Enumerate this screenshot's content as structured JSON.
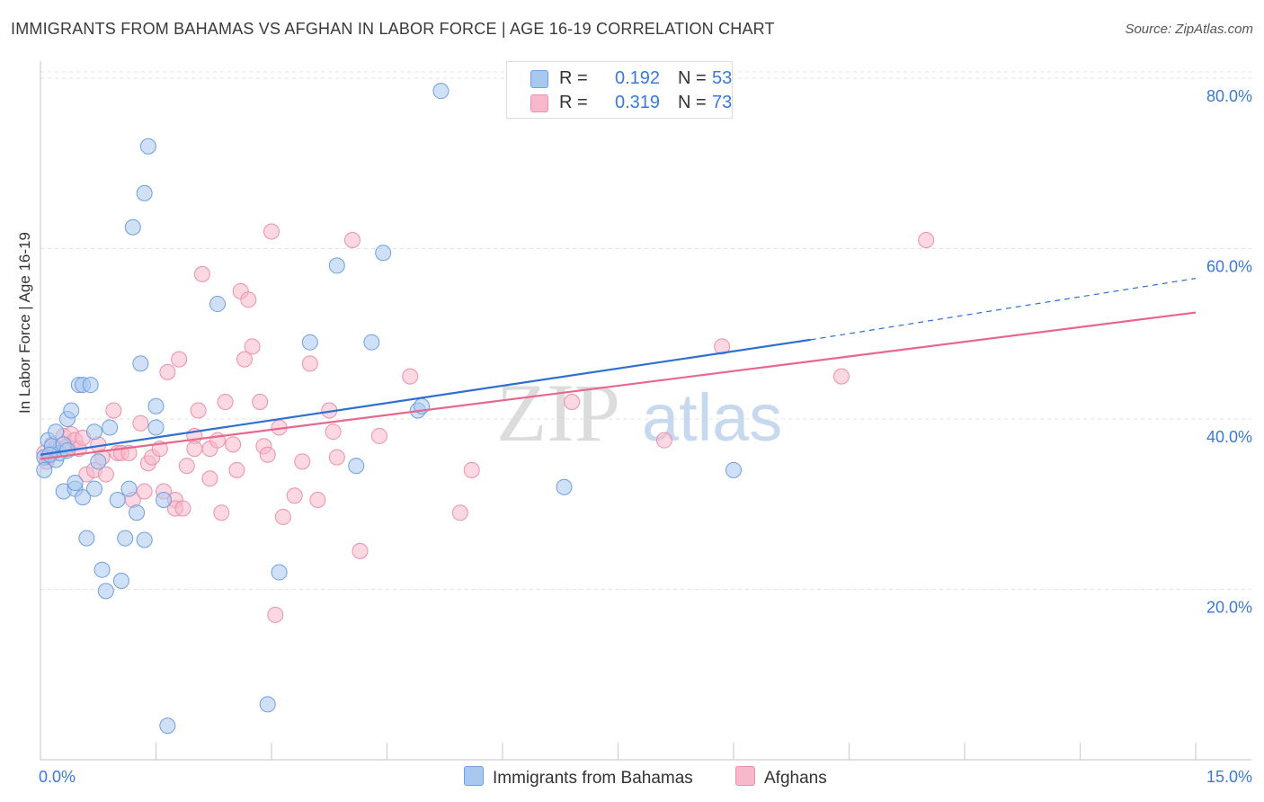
{
  "header": {
    "title": "IMMIGRANTS FROM BAHAMAS VS AFGHAN IN LABOR FORCE | AGE 16-19 CORRELATION CHART",
    "source": "Source: ZipAtlas.com"
  },
  "watermark": {
    "zip": "ZIP",
    "atlas": "atlas"
  },
  "legend": {
    "r_label": "R =",
    "n_label": "N =",
    "entries": [
      {
        "name": "Immigrants from Bahamas",
        "r": "0.192",
        "n": "53",
        "color": "#a9c8f0",
        "stroke": "#6e9fe0"
      },
      {
        "name": "Afghans",
        "r": "0.319",
        "n": "73",
        "color": "#f7b8cb",
        "stroke": "#ee8fab"
      }
    ]
  },
  "chart_data": {
    "type": "scatter",
    "title": "IMMIGRANTS FROM BAHAMAS VS AFGHAN IN LABOR FORCE | AGE 16-19 CORRELATION CHART",
    "xlabel": "",
    "ylabel": "In Labor Force | Age 16-19",
    "xlim": [
      0,
      15
    ],
    "ylim": [
      0,
      82
    ],
    "x_tick_labels": [
      "0.0%",
      "15.0%"
    ],
    "y_ticks": [
      20,
      40,
      60,
      80
    ],
    "y_tick_labels": [
      "20.0%",
      "40.0%",
      "60.0%",
      "80.0%"
    ],
    "grid": true,
    "legend_position": "top-center",
    "colors": {
      "blue": "#6e9fe0",
      "blue_fill": "#a9c8f0",
      "blue_line": "#2f6fd0",
      "pink": "#ee8fab",
      "pink_fill": "#f7b8cb",
      "pink_line": "#e8678e"
    },
    "series": [
      {
        "name": "Immigrants from Bahamas",
        "points": [
          [
            0.05,
            35.5
          ],
          [
            0.1,
            37.5
          ],
          [
            0.15,
            36.8
          ],
          [
            0.2,
            38.5
          ],
          [
            0.2,
            35.2
          ],
          [
            0.25,
            36.0
          ],
          [
            0.3,
            31.5
          ],
          [
            0.3,
            37.0
          ],
          [
            0.35,
            36.3
          ],
          [
            0.35,
            40.0
          ],
          [
            0.4,
            41.0
          ],
          [
            0.45,
            31.8
          ],
          [
            0.45,
            32.5
          ],
          [
            0.5,
            44.0
          ],
          [
            0.55,
            44.0
          ],
          [
            0.55,
            30.8
          ],
          [
            0.6,
            26.0
          ],
          [
            0.65,
            44.0
          ],
          [
            0.7,
            31.8
          ],
          [
            0.7,
            38.5
          ],
          [
            0.75,
            35.0
          ],
          [
            0.8,
            22.3
          ],
          [
            0.85,
            19.8
          ],
          [
            0.9,
            39.0
          ],
          [
            1.0,
            30.5
          ],
          [
            1.05,
            21.0
          ],
          [
            1.1,
            26.0
          ],
          [
            1.15,
            31.8
          ],
          [
            1.2,
            62.5
          ],
          [
            1.25,
            29.0
          ],
          [
            1.3,
            46.5
          ],
          [
            1.35,
            66.5
          ],
          [
            1.35,
            25.8
          ],
          [
            1.4,
            72.0
          ],
          [
            1.5,
            41.5
          ],
          [
            1.5,
            39.0
          ],
          [
            1.6,
            30.5
          ],
          [
            1.65,
            4.0
          ],
          [
            2.3,
            53.5
          ],
          [
            2.95,
            6.5
          ],
          [
            3.1,
            22.0
          ],
          [
            3.5,
            49.0
          ],
          [
            3.85,
            58.0
          ],
          [
            4.1,
            34.5
          ],
          [
            4.3,
            49.0
          ],
          [
            4.45,
            59.5
          ],
          [
            4.9,
            41.0
          ],
          [
            4.95,
            41.5
          ],
          [
            5.2,
            78.5
          ],
          [
            6.8,
            32.0
          ],
          [
            9.0,
            34.0
          ],
          [
            0.05,
            34.0
          ],
          [
            0.12,
            35.8
          ]
        ],
        "trend": {
          "x": [
            0,
            10.0
          ],
          "y": [
            35.8,
            49.3
          ]
        },
        "trend_extension": {
          "x": [
            10.0,
            15.0
          ],
          "y": [
            49.3,
            56.5
          ]
        }
      },
      {
        "name": "Afghans",
        "points": [
          [
            0.05,
            36.0
          ],
          [
            0.1,
            35.5
          ],
          [
            0.15,
            37.0
          ],
          [
            0.2,
            36.5
          ],
          [
            0.3,
            38.0
          ],
          [
            0.35,
            36.8
          ],
          [
            0.4,
            38.2
          ],
          [
            0.45,
            37.5
          ],
          [
            0.5,
            36.5
          ],
          [
            0.55,
            37.8
          ],
          [
            0.6,
            33.5
          ],
          [
            0.7,
            34.0
          ],
          [
            0.75,
            37.0
          ],
          [
            0.8,
            35.5
          ],
          [
            0.85,
            33.5
          ],
          [
            0.95,
            41.0
          ],
          [
            1.0,
            36.0
          ],
          [
            1.05,
            36.0
          ],
          [
            1.15,
            36.0
          ],
          [
            1.2,
            30.5
          ],
          [
            1.3,
            39.5
          ],
          [
            1.35,
            31.5
          ],
          [
            1.4,
            34.8
          ],
          [
            1.45,
            35.5
          ],
          [
            1.55,
            36.5
          ],
          [
            1.6,
            31.5
          ],
          [
            1.65,
            45.5
          ],
          [
            1.75,
            30.5
          ],
          [
            1.75,
            29.5
          ],
          [
            1.8,
            47.0
          ],
          [
            1.85,
            29.5
          ],
          [
            1.9,
            34.5
          ],
          [
            2.0,
            38.0
          ],
          [
            2.0,
            36.5
          ],
          [
            2.05,
            41.0
          ],
          [
            2.1,
            57.0
          ],
          [
            2.2,
            33.0
          ],
          [
            2.2,
            36.5
          ],
          [
            2.3,
            37.5
          ],
          [
            2.35,
            29.0
          ],
          [
            2.4,
            42.0
          ],
          [
            2.5,
            37.0
          ],
          [
            2.55,
            34.0
          ],
          [
            2.6,
            55.0
          ],
          [
            2.65,
            47.0
          ],
          [
            2.7,
            54.0
          ],
          [
            2.75,
            48.5
          ],
          [
            2.85,
            42.0
          ],
          [
            2.9,
            36.8
          ],
          [
            2.95,
            35.8
          ],
          [
            3.0,
            62.0
          ],
          [
            3.05,
            17.0
          ],
          [
            3.1,
            39.0
          ],
          [
            3.15,
            28.5
          ],
          [
            3.3,
            31.0
          ],
          [
            3.4,
            35.0
          ],
          [
            3.5,
            46.5
          ],
          [
            3.6,
            30.5
          ],
          [
            3.75,
            41.0
          ],
          [
            3.8,
            38.5
          ],
          [
            3.85,
            35.5
          ],
          [
            4.05,
            61.0
          ],
          [
            4.15,
            24.5
          ],
          [
            4.4,
            38.0
          ],
          [
            4.8,
            45.0
          ],
          [
            5.45,
            29.0
          ],
          [
            5.6,
            34.0
          ],
          [
            6.9,
            42.0
          ],
          [
            8.1,
            37.5
          ],
          [
            8.85,
            48.5
          ],
          [
            10.4,
            45.0
          ],
          [
            11.5,
            61.0
          ],
          [
            0.08,
            35.0
          ]
        ],
        "trend": {
          "x": [
            0,
            15.0
          ],
          "y": [
            35.3,
            52.5
          ]
        }
      }
    ]
  }
}
